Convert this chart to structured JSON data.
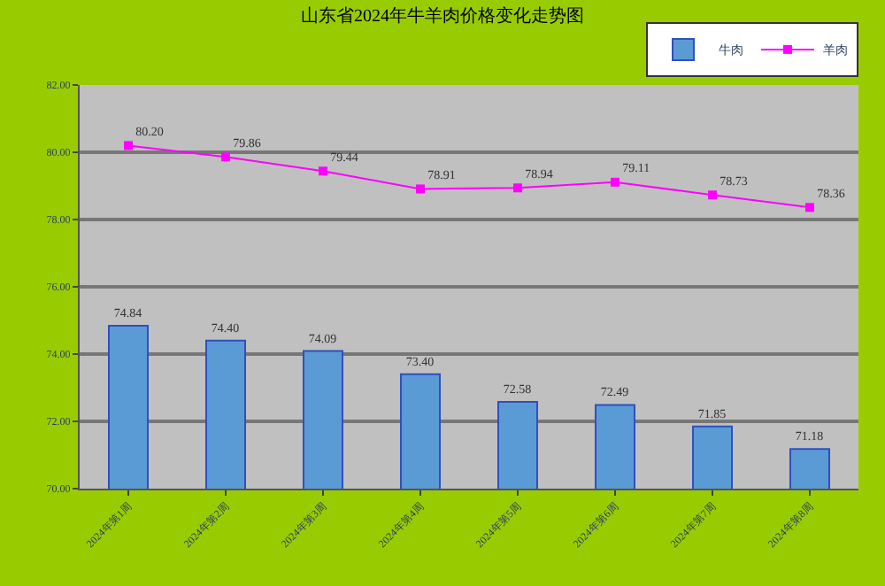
{
  "chart_data": {
    "type": "bar",
    "title": "山东省2024年牛羊肉价格变化走势图",
    "categories": [
      "2024年第1周",
      "2024年第2周",
      "2024年第3周",
      "2024年第4周",
      "2024年第5周",
      "2024年第6周",
      "2024年第7周",
      "2024年第8周"
    ],
    "series": [
      {
        "name": "牛肉",
        "color": "#5b9bd5",
        "values": [
          74.84,
          74.4,
          74.09,
          73.4,
          72.58,
          72.49,
          71.85,
          71.18
        ],
        "value_labels": [
          "74.84",
          "74.40",
          "74.09",
          "73.40",
          "72.58",
          "72.49",
          "71.85",
          "71.18"
        ]
      },
      {
        "name": "羊肉",
        "type": "line",
        "color": "#ff00ff",
        "marker": "square",
        "values": [
          80.2,
          79.86,
          79.44,
          78.91,
          78.94,
          79.11,
          78.73,
          78.36
        ],
        "value_labels": [
          "80.20",
          "79.86",
          "79.44",
          "78.91",
          "78.94",
          "79.11",
          "78.73",
          "78.36"
        ]
      }
    ],
    "ylim": [
      70,
      82
    ],
    "yticks": [
      {
        "value": 70,
        "label": "70.00"
      },
      {
        "value": 72,
        "label": "72.00"
      },
      {
        "value": 74,
        "label": "74.00"
      },
      {
        "value": 76,
        "label": "76.00"
      },
      {
        "value": 78,
        "label": "78.00"
      },
      {
        "value": 80,
        "label": "80.00"
      },
      {
        "value": 82,
        "label": "82.00"
      }
    ],
    "grid": "y",
    "legend": "top right"
  }
}
